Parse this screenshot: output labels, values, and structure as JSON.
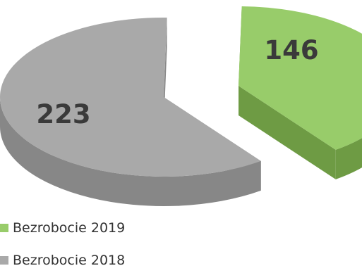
{
  "chart_data": {
    "type": "pie",
    "style": "3d-exploded",
    "legend_position": "bottom-left",
    "series": [
      {
        "name": "Bezrobocie 2019",
        "value": 146,
        "color": "#98cc6a",
        "side_color": "#6e9b44"
      },
      {
        "name": "Bezrobocie 2018",
        "value": 223,
        "color": "#a9a9a9",
        "side_color": "#878787"
      }
    ]
  }
}
